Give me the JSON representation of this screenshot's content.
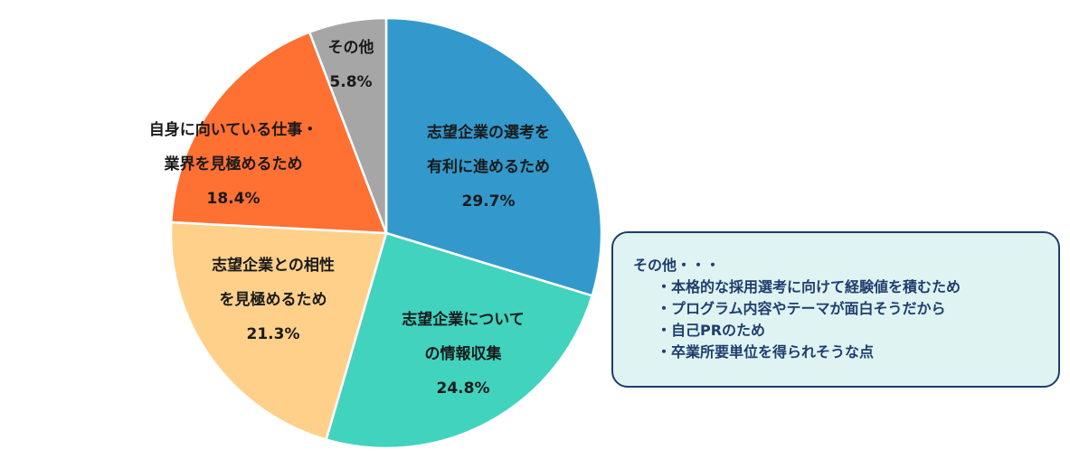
{
  "chart_data": {
    "type": "pie",
    "slices": [
      {
        "label_lines": [
          "志望企業の選考を",
          "有利に進めるため"
        ],
        "value_label": "29.7%",
        "value": 29.7,
        "color": "#3399cc"
      },
      {
        "label_lines": [
          "志望企業について",
          "の情報収集"
        ],
        "value_label": "24.8%",
        "value": 24.8,
        "color": "#41d3bd"
      },
      {
        "label_lines": [
          "志望企業との相性",
          "を見極めるため"
        ],
        "value_label": "21.3%",
        "value": 21.3,
        "color": "#ffd08a"
      },
      {
        "label_lines": [
          "自身に向いている仕事・",
          "業界を見極めるため"
        ],
        "value_label": "18.4%",
        "value": 18.4,
        "color": "#ff7033"
      },
      {
        "label_lines": [
          "その他"
        ],
        "value_label": "5.8%",
        "value": 5.8,
        "color": "#a6a6a6"
      }
    ],
    "start": "top",
    "direction": "clockwise"
  },
  "note": {
    "title": "その他・・・",
    "items": [
      "・本格的な採用選考に向けて経験値を積むため",
      "・プログラム内容やテーマが面白そうだから",
      "・自己PRのため",
      "・卒業所要単位を得られそうな点"
    ]
  }
}
